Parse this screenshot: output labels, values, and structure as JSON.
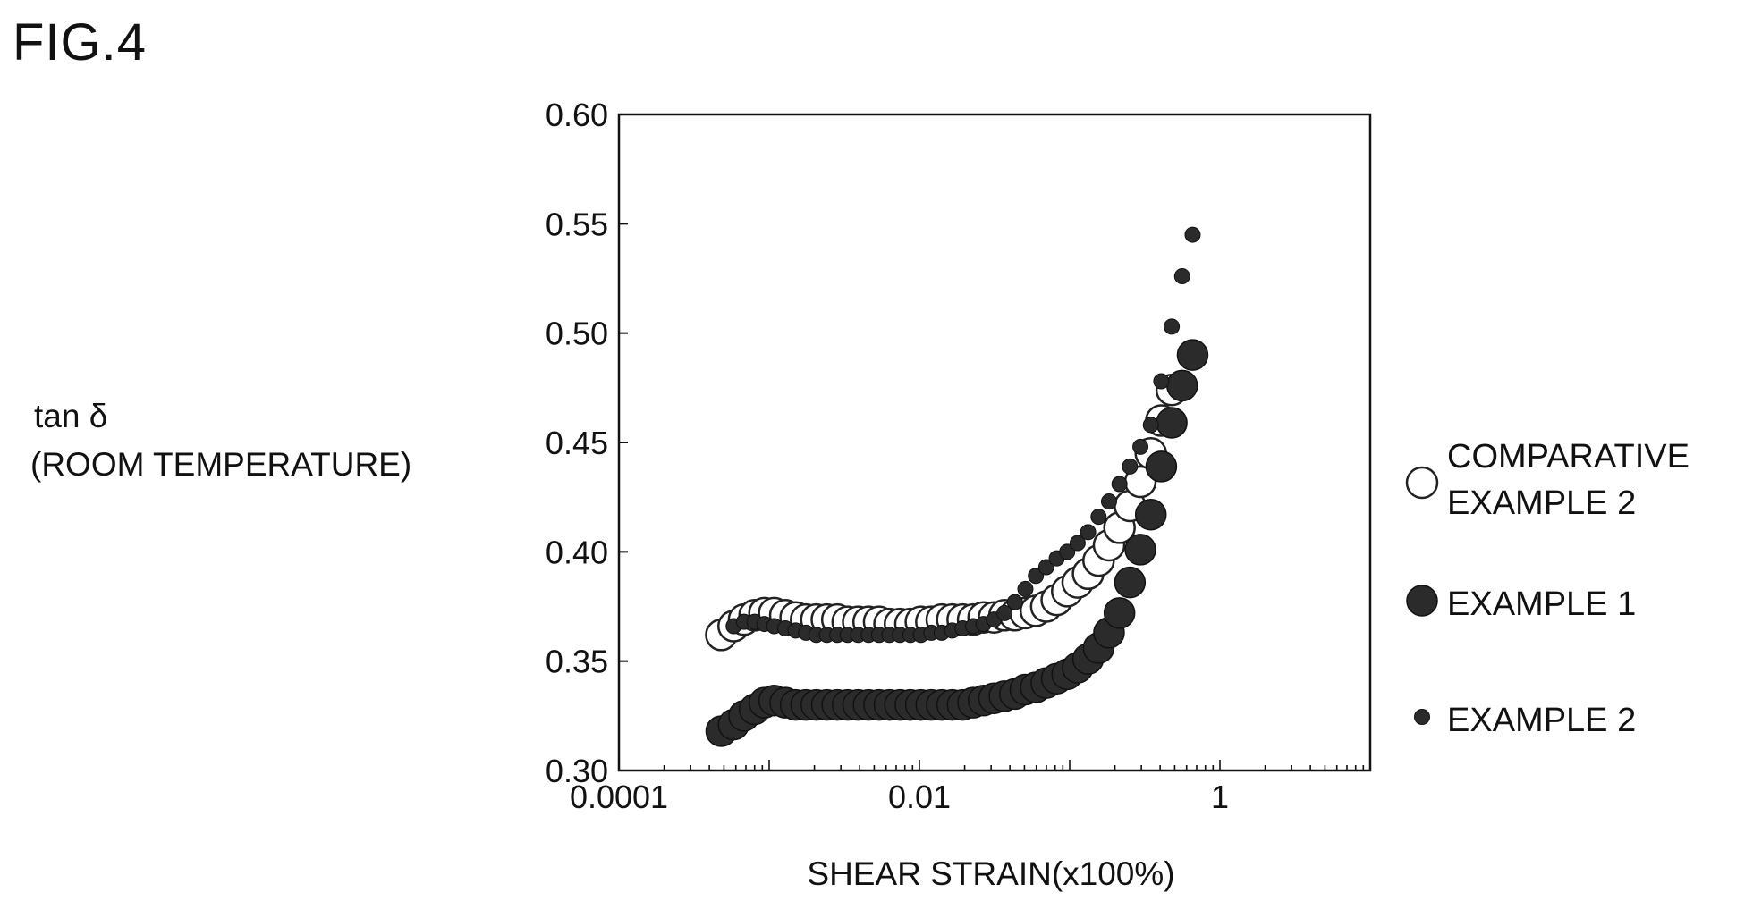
{
  "figure_label": "FIG.4",
  "chart_data": {
    "type": "scatter",
    "xlabel": "SHEAR STRAIN(x100%)",
    "ylabel": [
      "tan δ",
      "(ROOM TEMPERATURE)"
    ],
    "x_scale": "log",
    "xlim": [
      0.0001,
      10
    ],
    "ylim": [
      0.3,
      0.6
    ],
    "x_ticks": [
      {
        "value": 0.0001,
        "label": "0.0001"
      },
      {
        "value": 0.01,
        "label": "0.01"
      },
      {
        "value": 1,
        "label": "1"
      }
    ],
    "y_ticks": [
      {
        "value": 0.3,
        "label": "0.30"
      },
      {
        "value": 0.35,
        "label": "0.35"
      },
      {
        "value": 0.4,
        "label": "0.40"
      },
      {
        "value": 0.45,
        "label": "0.45"
      },
      {
        "value": 0.5,
        "label": "0.50"
      },
      {
        "value": 0.55,
        "label": "0.55"
      },
      {
        "value": 0.6,
        "label": "0.60"
      }
    ],
    "grid": false,
    "legend_position": "right",
    "series": [
      {
        "name": [
          "COMPARATIVE",
          "EXAMPLE 2"
        ],
        "marker": "open-circle-large",
        "points": [
          [
            0.00048,
            0.362
          ],
          [
            0.00058,
            0.366
          ],
          [
            0.00068,
            0.369
          ],
          [
            0.0008,
            0.371
          ],
          [
            0.00093,
            0.372
          ],
          [
            0.00108,
            0.372
          ],
          [
            0.00128,
            0.371
          ],
          [
            0.0015,
            0.37
          ],
          [
            0.00176,
            0.369
          ],
          [
            0.00206,
            0.369
          ],
          [
            0.00242,
            0.369
          ],
          [
            0.00284,
            0.369
          ],
          [
            0.00333,
            0.368
          ],
          [
            0.00391,
            0.368
          ],
          [
            0.00459,
            0.368
          ],
          [
            0.00539,
            0.368
          ],
          [
            0.00632,
            0.367
          ],
          [
            0.00742,
            0.367
          ],
          [
            0.00871,
            0.367
          ],
          [
            0.01022,
            0.368
          ],
          [
            0.012,
            0.368
          ],
          [
            0.01408,
            0.369
          ],
          [
            0.01653,
            0.369
          ],
          [
            0.0194,
            0.369
          ],
          [
            0.02277,
            0.369
          ],
          [
            0.02673,
            0.37
          ],
          [
            0.03137,
            0.37
          ],
          [
            0.03682,
            0.371
          ],
          [
            0.04322,
            0.371
          ],
          [
            0.05073,
            0.372
          ],
          [
            0.05954,
            0.373
          ],
          [
            0.06988,
            0.375
          ],
          [
            0.08203,
            0.378
          ],
          [
            0.09628,
            0.382
          ],
          [
            0.113,
            0.386
          ],
          [
            0.1326,
            0.39
          ],
          [
            0.1557,
            0.396
          ],
          [
            0.1827,
            0.403
          ],
          [
            0.2145,
            0.411
          ],
          [
            0.2517,
            0.421
          ],
          [
            0.2955,
            0.432
          ],
          [
            0.3468,
            0.445
          ],
          [
            0.407,
            0.46
          ],
          [
            0.4777,
            0.474
          ]
        ]
      },
      {
        "name": [
          "EXAMPLE 1"
        ],
        "marker": "filled-circle-large",
        "points": [
          [
            0.00048,
            0.318
          ],
          [
            0.00058,
            0.321
          ],
          [
            0.00068,
            0.325
          ],
          [
            0.0008,
            0.328
          ],
          [
            0.00093,
            0.331
          ],
          [
            0.00108,
            0.332
          ],
          [
            0.00128,
            0.331
          ],
          [
            0.0015,
            0.33
          ],
          [
            0.00176,
            0.33
          ],
          [
            0.00206,
            0.33
          ],
          [
            0.00242,
            0.33
          ],
          [
            0.00284,
            0.33
          ],
          [
            0.00333,
            0.33
          ],
          [
            0.00391,
            0.33
          ],
          [
            0.00459,
            0.33
          ],
          [
            0.00539,
            0.33
          ],
          [
            0.00632,
            0.33
          ],
          [
            0.00742,
            0.33
          ],
          [
            0.00871,
            0.33
          ],
          [
            0.01022,
            0.33
          ],
          [
            0.012,
            0.33
          ],
          [
            0.01408,
            0.33
          ],
          [
            0.01653,
            0.33
          ],
          [
            0.0194,
            0.33
          ],
          [
            0.02277,
            0.331
          ],
          [
            0.02673,
            0.332
          ],
          [
            0.03137,
            0.333
          ],
          [
            0.03682,
            0.334
          ],
          [
            0.04322,
            0.335
          ],
          [
            0.05073,
            0.337
          ],
          [
            0.05954,
            0.338
          ],
          [
            0.06988,
            0.34
          ],
          [
            0.08203,
            0.342
          ],
          [
            0.09628,
            0.344
          ],
          [
            0.113,
            0.347
          ],
          [
            0.1326,
            0.351
          ],
          [
            0.1557,
            0.356
          ],
          [
            0.1827,
            0.363
          ],
          [
            0.2145,
            0.372
          ],
          [
            0.2517,
            0.386
          ],
          [
            0.2955,
            0.401
          ],
          [
            0.3468,
            0.417
          ],
          [
            0.407,
            0.439
          ],
          [
            0.4777,
            0.459
          ],
          [
            0.5606,
            0.476
          ],
          [
            0.6579,
            0.49
          ]
        ]
      },
      {
        "name": [
          "EXAMPLE 2"
        ],
        "marker": "filled-circle-small",
        "points": [
          [
            0.00058,
            0.366
          ],
          [
            0.00068,
            0.368
          ],
          [
            0.0008,
            0.368
          ],
          [
            0.00093,
            0.367
          ],
          [
            0.00108,
            0.366
          ],
          [
            0.00128,
            0.365
          ],
          [
            0.0015,
            0.364
          ],
          [
            0.00176,
            0.363
          ],
          [
            0.00206,
            0.362
          ],
          [
            0.00242,
            0.362
          ],
          [
            0.00284,
            0.362
          ],
          [
            0.00333,
            0.362
          ],
          [
            0.00391,
            0.362
          ],
          [
            0.00459,
            0.362
          ],
          [
            0.00539,
            0.362
          ],
          [
            0.00632,
            0.362
          ],
          [
            0.00742,
            0.362
          ],
          [
            0.00871,
            0.362
          ],
          [
            0.01022,
            0.362
          ],
          [
            0.012,
            0.363
          ],
          [
            0.01408,
            0.363
          ],
          [
            0.01653,
            0.364
          ],
          [
            0.0194,
            0.365
          ],
          [
            0.02277,
            0.366
          ],
          [
            0.02673,
            0.367
          ],
          [
            0.03137,
            0.369
          ],
          [
            0.03682,
            0.372
          ],
          [
            0.04322,
            0.377
          ],
          [
            0.05073,
            0.383
          ],
          [
            0.05954,
            0.389
          ],
          [
            0.06988,
            0.393
          ],
          [
            0.08203,
            0.397
          ],
          [
            0.09628,
            0.4
          ],
          [
            0.113,
            0.404
          ],
          [
            0.1326,
            0.409
          ],
          [
            0.1557,
            0.416
          ],
          [
            0.1827,
            0.423
          ],
          [
            0.2145,
            0.431
          ],
          [
            0.2517,
            0.439
          ],
          [
            0.2955,
            0.448
          ],
          [
            0.3468,
            0.458
          ],
          [
            0.407,
            0.478
          ],
          [
            0.4777,
            0.503
          ],
          [
            0.5606,
            0.526
          ],
          [
            0.6579,
            0.545
          ]
        ]
      }
    ]
  }
}
